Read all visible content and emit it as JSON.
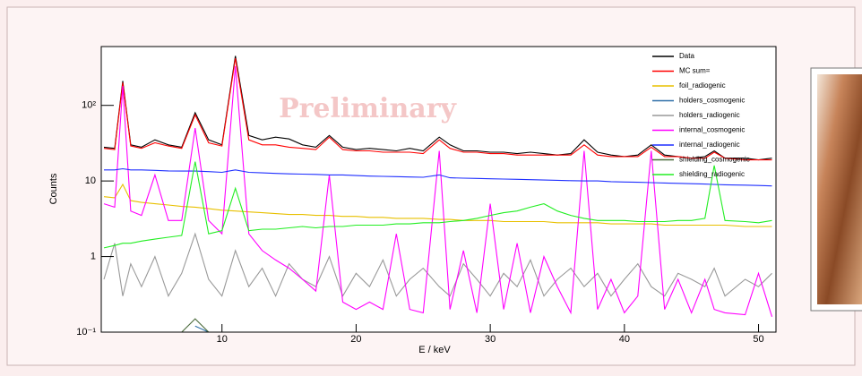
{
  "chart_data": {
    "type": "line",
    "annotation": "Preliminary",
    "xlabel": "E / keV",
    "ylabel": "Counts",
    "log_y": true,
    "grid": false,
    "legend": "top-right",
    "xlim": [
      1,
      51.3
    ],
    "xticks": [
      10,
      20,
      30,
      40,
      50
    ],
    "ylim": [
      0.1,
      600
    ],
    "yticks": [
      {
        "value": 0.1,
        "label": "10⁻¹"
      },
      1,
      10,
      {
        "value": 100,
        "label": "10²"
      }
    ],
    "x": [
      1.2,
      2,
      2.6,
      3.2,
      4,
      5,
      6,
      7,
      8,
      9,
      10,
      11,
      12,
      13,
      14,
      15,
      16,
      17,
      18,
      19,
      20,
      21,
      22,
      23,
      24,
      25,
      26.2,
      27,
      28,
      29,
      30,
      31,
      32,
      33,
      34,
      35,
      36,
      37,
      38,
      39,
      40,
      41,
      42,
      43,
      44,
      45,
      46,
      46.7,
      47.5,
      49,
      50,
      51
    ],
    "series": [
      {
        "name": "Data",
        "color": "#000000",
        "values": [
          28,
          27,
          210,
          30,
          28,
          35,
          30,
          28,
          80,
          35,
          30,
          450,
          40,
          35,
          38,
          36,
          30,
          28,
          40,
          28,
          26,
          27,
          26,
          25,
          27,
          25,
          38,
          30,
          25,
          25,
          24,
          24,
          23,
          24,
          23,
          22,
          23,
          35,
          24,
          22,
          21,
          22,
          30,
          22,
          21,
          20,
          21,
          25,
          20,
          20,
          19,
          20
        ]
      },
      {
        "name": "MC sum=",
        "color": "#ff0000",
        "values": [
          27,
          26,
          200,
          29,
          27,
          32,
          29,
          27,
          75,
          32,
          29,
          420,
          35,
          30,
          30,
          28,
          27,
          26,
          38,
          26,
          25,
          25,
          24,
          24,
          24,
          23,
          35,
          27,
          24,
          24,
          23,
          23,
          22,
          22,
          22,
          22,
          22,
          30,
          22,
          21,
          21,
          21,
          28,
          21,
          21,
          20,
          20,
          24,
          20,
          19,
          19,
          19
        ]
      },
      {
        "name": "foil_radiogenic",
        "color": "#e8c000",
        "values": [
          6.2,
          6,
          9,
          5.5,
          5.2,
          5,
          4.8,
          4.6,
          4.5,
          4.3,
          4.1,
          4,
          3.9,
          3.8,
          3.7,
          3.6,
          3.6,
          3.5,
          3.5,
          3.4,
          3.4,
          3.3,
          3.3,
          3.2,
          3.2,
          3.2,
          3.1,
          3.1,
          3,
          3,
          3,
          2.9,
          2.9,
          2.9,
          2.9,
          2.8,
          2.8,
          2.8,
          2.8,
          2.7,
          2.7,
          2.7,
          2.7,
          2.6,
          2.6,
          2.6,
          2.6,
          2.6,
          2.6,
          2.5,
          2.5,
          2.5
        ]
      },
      {
        "name": "holders_cosmogenic",
        "color": "#2f6fa8",
        "values": [
          null,
          null,
          null,
          null,
          null,
          null,
          null,
          null,
          0.12,
          0.1,
          null,
          null,
          null,
          null,
          null,
          null,
          null,
          null,
          null,
          null,
          null,
          null,
          null,
          null,
          null,
          null,
          null,
          null,
          null,
          null,
          null,
          null,
          null,
          null,
          null,
          null,
          null,
          null,
          null,
          null,
          null,
          null,
          null,
          null,
          null,
          null,
          null,
          null,
          null,
          null,
          null,
          null
        ]
      },
      {
        "name": "holders_radiogenic",
        "color": "#999999",
        "values": [
          0.5,
          1.5,
          0.3,
          0.8,
          0.4,
          1,
          0.3,
          0.6,
          2,
          0.5,
          0.3,
          1.2,
          0.4,
          0.7,
          0.3,
          0.8,
          0.5,
          0.4,
          1,
          0.3,
          0.6,
          0.4,
          0.9,
          0.3,
          0.5,
          0.7,
          0.4,
          0.3,
          0.8,
          0.5,
          0.3,
          0.6,
          0.4,
          0.9,
          0.3,
          0.5,
          0.7,
          0.4,
          0.6,
          0.3,
          0.5,
          0.8,
          0.4,
          0.3,
          0.6,
          0.5,
          0.4,
          0.7,
          0.3,
          0.5,
          0.4,
          0.6
        ]
      },
      {
        "name": "internal_cosmogenic",
        "color": "#ff00ff",
        "values": [
          5,
          4.5,
          180,
          4,
          3.5,
          12,
          3,
          3,
          50,
          3,
          2,
          330,
          2,
          1.2,
          0.9,
          0.7,
          0.5,
          0.35,
          12,
          0.25,
          0.2,
          0.25,
          0.2,
          2,
          0.2,
          0.18,
          25,
          0.2,
          1.2,
          0.18,
          5,
          0.2,
          1.5,
          0.18,
          1,
          0.4,
          0.18,
          25,
          0.2,
          0.5,
          0.18,
          0.3,
          25,
          0.2,
          0.5,
          0.18,
          0.5,
          0.2,
          0.18,
          0.17,
          0.6,
          0.16
        ]
      },
      {
        "name": "internal_radiogenic",
        "color": "#1f2fff",
        "values": [
          14,
          14,
          14.5,
          14,
          14,
          13.8,
          13.6,
          13.5,
          13.5,
          13.3,
          13,
          14,
          13,
          12.8,
          12.6,
          12.4,
          12.3,
          12.2,
          12,
          12,
          11.8,
          11.6,
          11.5,
          11.4,
          11.3,
          11.2,
          12,
          11,
          10.9,
          10.8,
          10.7,
          10.6,
          10.5,
          10.4,
          10.3,
          10.2,
          10.1,
          10,
          10,
          9.8,
          9.7,
          9.6,
          9.5,
          9.4,
          9.3,
          9.2,
          9.1,
          9,
          8.9,
          8.8,
          8.7,
          8.6
        ]
      },
      {
        "name": "shielding_cosmogenic",
        "color": "#4a6a3a",
        "values": [
          null,
          null,
          null,
          null,
          null,
          null,
          null,
          0.1,
          0.15,
          0.1,
          null,
          null,
          null,
          null,
          null,
          null,
          null,
          null,
          null,
          null,
          null,
          null,
          null,
          null,
          null,
          null,
          null,
          null,
          null,
          null,
          null,
          null,
          null,
          null,
          null,
          null,
          null,
          null,
          null,
          null,
          null,
          null,
          null,
          null,
          null,
          null,
          null,
          null,
          null,
          null,
          null,
          null
        ]
      },
      {
        "name": "shielding_radiogenic",
        "color": "#22ee22",
        "values": [
          1.3,
          1.4,
          1.5,
          1.5,
          1.6,
          1.7,
          1.8,
          1.9,
          18,
          2,
          2.2,
          8,
          2.2,
          2.3,
          2.3,
          2.4,
          2.5,
          2.4,
          2.5,
          2.5,
          2.6,
          2.6,
          2.6,
          2.7,
          2.7,
          2.8,
          2.8,
          2.9,
          3,
          3.2,
          3.5,
          3.8,
          4,
          4.5,
          5,
          4,
          3.5,
          3.2,
          3,
          3,
          3,
          2.9,
          2.9,
          2.9,
          3,
          3,
          3.2,
          16,
          3,
          2.9,
          2.8,
          3
        ]
      }
    ]
  }
}
